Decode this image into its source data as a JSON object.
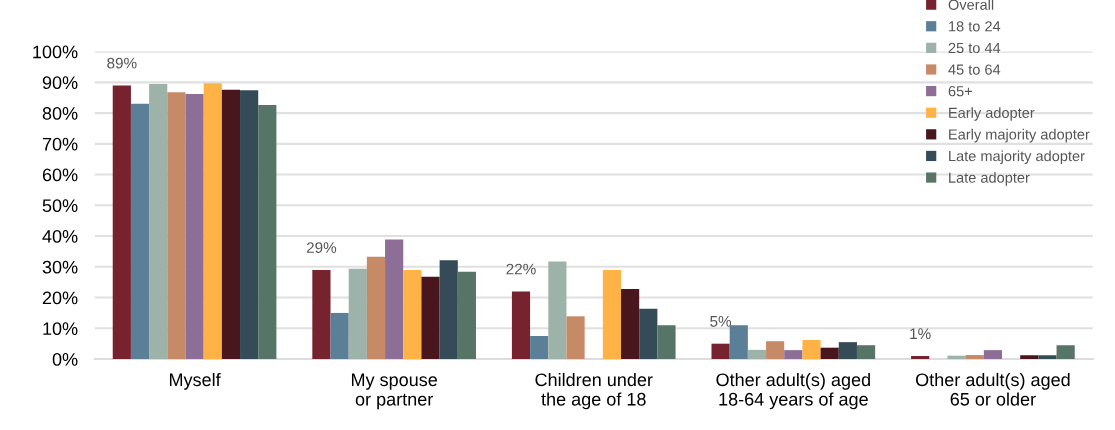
{
  "chart_data": {
    "type": "bar",
    "categories": [
      "Myself",
      "My spouse\nor partner",
      "Children under\nthe age of 18",
      "Other adult(s) aged\n18-64 years of age",
      "Other adult(s) aged\n65 or older"
    ],
    "series": [
      {
        "name": "Overall",
        "color": "#76222f",
        "values": [
          89,
          29,
          22,
          5,
          1
        ],
        "value_labels": [
          "89%",
          "29%",
          "22%",
          "5%",
          "1%"
        ]
      },
      {
        "name": "18 to 24",
        "color": "#5b7f96",
        "values": [
          83,
          15,
          7.5,
          11,
          0
        ]
      },
      {
        "name": "25 to 44",
        "color": "#9db3a9",
        "values": [
          89.5,
          29.4,
          31.7,
          3,
          1.1
        ]
      },
      {
        "name": "45 to 64",
        "color": "#c78a67",
        "values": [
          86.8,
          33.3,
          13.9,
          5.8,
          1.3
        ]
      },
      {
        "name": "65+",
        "color": "#8d6e96",
        "values": [
          86.2,
          38.9,
          0,
          2.9,
          2.9
        ]
      },
      {
        "name": "Early adopter",
        "color": "#ffb347",
        "values": [
          89.7,
          29,
          29,
          6.2,
          0
        ]
      },
      {
        "name": "Early majority adopter",
        "color": "#4a161e",
        "values": [
          87.6,
          26.8,
          22.8,
          3.7,
          1.2
        ]
      },
      {
        "name": "Late majority adopter",
        "color": "#364b58",
        "values": [
          87.4,
          32.1,
          16.4,
          5.5,
          1.2
        ]
      },
      {
        "name": "Late adopter",
        "color": "#577567",
        "values": [
          82.6,
          28.4,
          11,
          4.5,
          4.5
        ]
      }
    ],
    "ylim": [
      0,
      100
    ],
    "yticks": [
      {
        "value": 0,
        "label": "0%"
      },
      {
        "value": 10,
        "label": "10%"
      },
      {
        "value": 20,
        "label": "20%"
      },
      {
        "value": 30,
        "label": "30%"
      },
      {
        "value": 40,
        "label": "40%"
      },
      {
        "value": 50,
        "label": "50%"
      },
      {
        "value": 60,
        "label": "60%"
      },
      {
        "value": 70,
        "label": "70%"
      },
      {
        "value": 80,
        "label": "80%"
      },
      {
        "value": 90,
        "label": "90%"
      },
      {
        "value": 100,
        "label": "100%"
      }
    ],
    "grid": "y",
    "legend": "top right"
  }
}
